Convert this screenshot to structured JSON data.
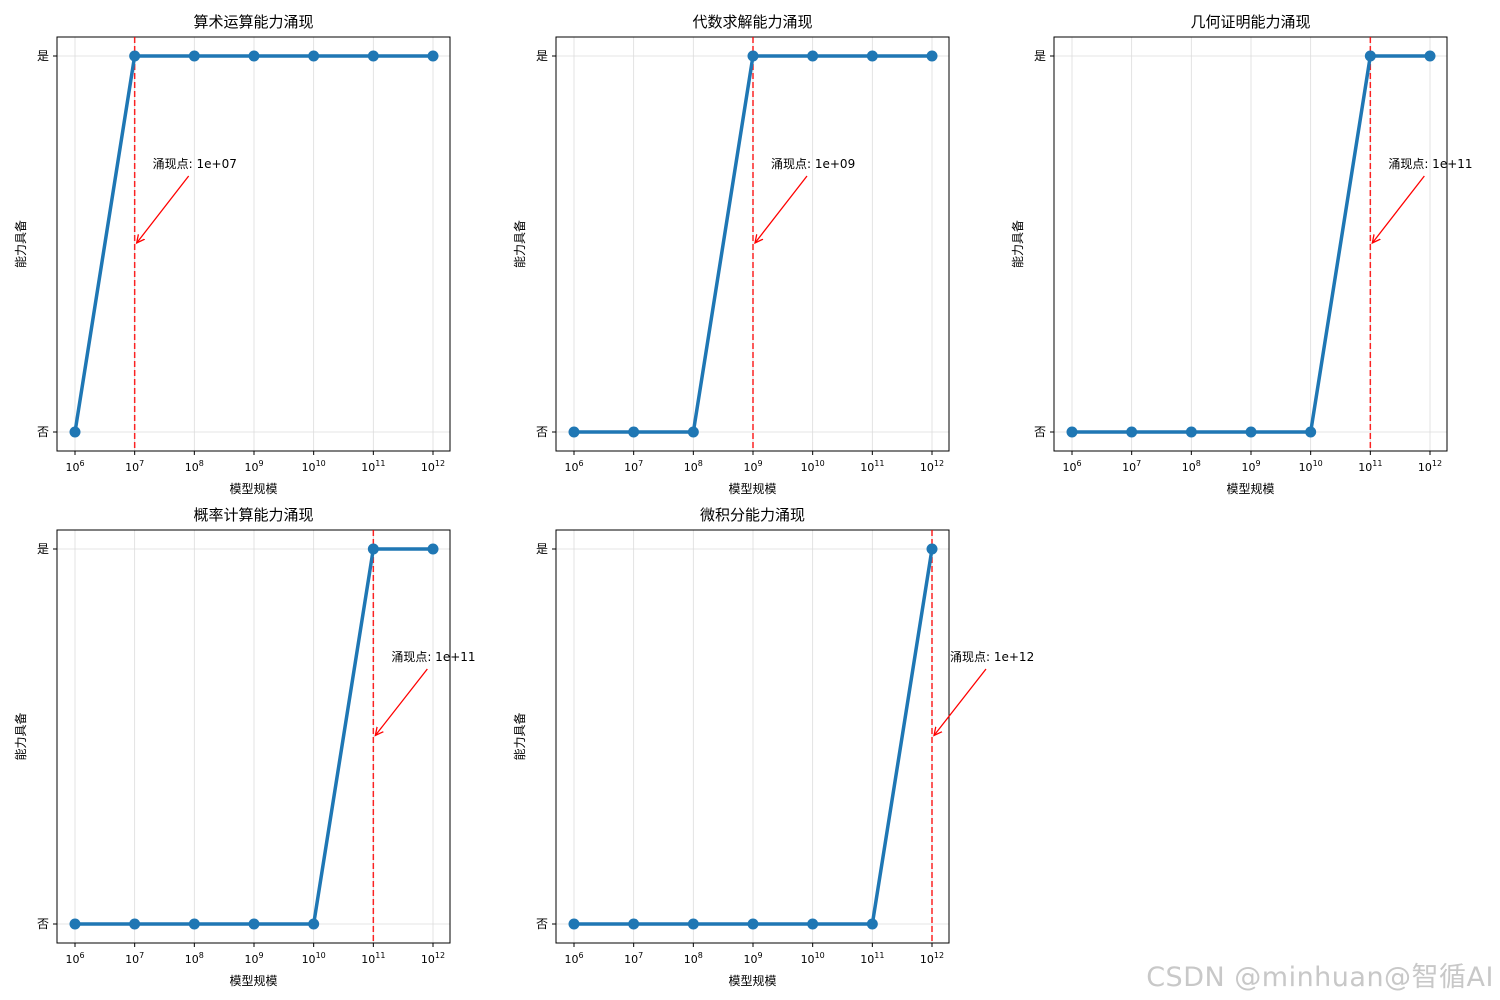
{
  "chart_data": [
    {
      "type": "line",
      "title": "算术运算能力涌现",
      "xlabel": "模型规模",
      "ylabel": "能力具备",
      "xscale": "log",
      "x": [
        1000000,
        10000000,
        100000000,
        1000000000,
        10000000000,
        100000000000,
        1000000000000
      ],
      "x_tick_labels": [
        {
          "base": "10",
          "exp": "6"
        },
        {
          "base": "10",
          "exp": "7"
        },
        {
          "base": "10",
          "exp": "8"
        },
        {
          "base": "10",
          "exp": "9"
        },
        {
          "base": "10",
          "exp": "10"
        },
        {
          "base": "10",
          "exp": "11"
        },
        {
          "base": "10",
          "exp": "12"
        }
      ],
      "y_ticks": [
        {
          "value": 0,
          "label": "否"
        },
        {
          "value": 1,
          "label": "是"
        }
      ],
      "values": [
        0,
        1,
        1,
        1,
        1,
        1,
        1
      ],
      "emergence_x": 10000000,
      "annotation": "涌现点: 1e+07",
      "grid": true,
      "line_color": "#1f77b4",
      "marker_color": "#1f77b4",
      "emergence_line_color": "#ff0000"
    },
    {
      "type": "line",
      "title": "代数求解能力涌现",
      "xlabel": "模型规模",
      "ylabel": "能力具备",
      "xscale": "log",
      "x": [
        1000000,
        10000000,
        100000000,
        1000000000,
        10000000000,
        100000000000,
        1000000000000
      ],
      "x_tick_labels": [
        {
          "base": "10",
          "exp": "6"
        },
        {
          "base": "10",
          "exp": "7"
        },
        {
          "base": "10",
          "exp": "8"
        },
        {
          "base": "10",
          "exp": "9"
        },
        {
          "base": "10",
          "exp": "10"
        },
        {
          "base": "10",
          "exp": "11"
        },
        {
          "base": "10",
          "exp": "12"
        }
      ],
      "y_ticks": [
        {
          "value": 0,
          "label": "否"
        },
        {
          "value": 1,
          "label": "是"
        }
      ],
      "values": [
        0,
        0,
        0,
        1,
        1,
        1,
        1
      ],
      "emergence_x": 1000000000,
      "annotation": "涌现点: 1e+09",
      "grid": true,
      "line_color": "#1f77b4",
      "marker_color": "#1f77b4",
      "emergence_line_color": "#ff0000"
    },
    {
      "type": "line",
      "title": "几何证明能力涌现",
      "xlabel": "模型规模",
      "ylabel": "能力具备",
      "xscale": "log",
      "x": [
        1000000,
        10000000,
        100000000,
        1000000000,
        10000000000,
        100000000000,
        1000000000000
      ],
      "x_tick_labels": [
        {
          "base": "10",
          "exp": "6"
        },
        {
          "base": "10",
          "exp": "7"
        },
        {
          "base": "10",
          "exp": "8"
        },
        {
          "base": "10",
          "exp": "9"
        },
        {
          "base": "10",
          "exp": "10"
        },
        {
          "base": "10",
          "exp": "11"
        },
        {
          "base": "10",
          "exp": "12"
        }
      ],
      "y_ticks": [
        {
          "value": 0,
          "label": "否"
        },
        {
          "value": 1,
          "label": "是"
        }
      ],
      "values": [
        0,
        0,
        0,
        0,
        0,
        1,
        1
      ],
      "emergence_x": 100000000000,
      "annotation": "涌现点: 1e+11",
      "grid": true,
      "line_color": "#1f77b4",
      "marker_color": "#1f77b4",
      "emergence_line_color": "#ff0000"
    },
    {
      "type": "line",
      "title": "概率计算能力涌现",
      "xlabel": "模型规模",
      "ylabel": "能力具备",
      "xscale": "log",
      "x": [
        1000000,
        10000000,
        100000000,
        1000000000,
        10000000000,
        100000000000,
        1000000000000
      ],
      "x_tick_labels": [
        {
          "base": "10",
          "exp": "6"
        },
        {
          "base": "10",
          "exp": "7"
        },
        {
          "base": "10",
          "exp": "8"
        },
        {
          "base": "10",
          "exp": "9"
        },
        {
          "base": "10",
          "exp": "10"
        },
        {
          "base": "10",
          "exp": "11"
        },
        {
          "base": "10",
          "exp": "12"
        }
      ],
      "y_ticks": [
        {
          "value": 0,
          "label": "否"
        },
        {
          "value": 1,
          "label": "是"
        }
      ],
      "values": [
        0,
        0,
        0,
        0,
        0,
        1,
        1
      ],
      "emergence_x": 100000000000,
      "annotation": "涌现点: 1e+11",
      "grid": true,
      "line_color": "#1f77b4",
      "marker_color": "#1f77b4",
      "emergence_line_color": "#ff0000"
    },
    {
      "type": "line",
      "title": "微积分能力涌现",
      "xlabel": "模型规模",
      "ylabel": "能力具备",
      "xscale": "log",
      "x": [
        1000000,
        10000000,
        100000000,
        1000000000,
        10000000000,
        100000000000,
        1000000000000
      ],
      "x_tick_labels": [
        {
          "base": "10",
          "exp": "6"
        },
        {
          "base": "10",
          "exp": "7"
        },
        {
          "base": "10",
          "exp": "8"
        },
        {
          "base": "10",
          "exp": "9"
        },
        {
          "base": "10",
          "exp": "10"
        },
        {
          "base": "10",
          "exp": "11"
        },
        {
          "base": "10",
          "exp": "12"
        }
      ],
      "y_ticks": [
        {
          "value": 0,
          "label": "否"
        },
        {
          "value": 1,
          "label": "是"
        }
      ],
      "values": [
        0,
        0,
        0,
        0,
        0,
        0,
        1
      ],
      "emergence_x": 1000000000000,
      "annotation": "涌现点: 1e+12",
      "grid": true,
      "line_color": "#1f77b4",
      "marker_color": "#1f77b4",
      "emergence_line_color": "#ff0000"
    }
  ],
  "watermark": "CSDN @minhuan@智循AI"
}
